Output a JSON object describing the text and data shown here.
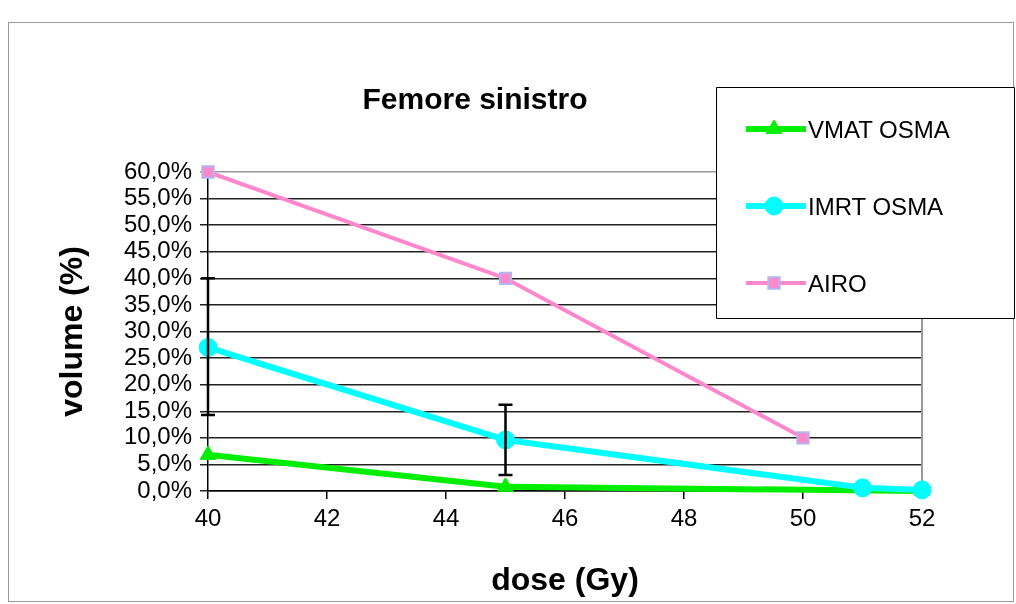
{
  "chart_data": {
    "type": "line",
    "title": "Femore sinistro",
    "xlabel": "dose (Gy)",
    "ylabel": "volume (%)",
    "xlim": [
      40,
      52
    ],
    "xticks": [
      40,
      42,
      44,
      46,
      48,
      50,
      52
    ],
    "ylim": [
      0,
      60
    ],
    "yticks": [
      {
        "value": 0,
        "label": "0,0%"
      },
      {
        "value": 5,
        "label": "5,0%"
      },
      {
        "value": 10,
        "label": "10,0%"
      },
      {
        "value": 15,
        "label": "15,0%"
      },
      {
        "value": 20,
        "label": "20,0%"
      },
      {
        "value": 25,
        "label": "25,0%"
      },
      {
        "value": 30,
        "label": "30,0%"
      },
      {
        "value": 35,
        "label": "35,0%"
      },
      {
        "value": 40,
        "label": "40,0%"
      },
      {
        "value": 45,
        "label": "45,0%"
      },
      {
        "value": 50,
        "label": "50,0%"
      },
      {
        "value": 55,
        "label": "55,0%"
      },
      {
        "value": 60,
        "label": "60,0%"
      }
    ],
    "grid": "y",
    "legend": "top right",
    "series": [
      {
        "name": "VMAT OSMA",
        "color": "#00ee00",
        "marker": "triangle",
        "x": [
          40,
          45,
          52
        ],
        "values": [
          6.8,
          0.8,
          0
        ]
      },
      {
        "name": "IMRT OSMA",
        "color": "#00ffff",
        "marker": "circle",
        "x": [
          40,
          45,
          51,
          52
        ],
        "values": [
          27,
          9.6,
          0.6,
          0.2
        ],
        "errors": [
          [
            14.3,
            40
          ],
          [
            3,
            16.2
          ],
          null,
          null
        ]
      },
      {
        "name": "AIRO",
        "color": "#ff88cc",
        "marker": "square",
        "x": [
          40,
          45,
          50
        ],
        "values": [
          60,
          40,
          10
        ]
      }
    ]
  }
}
